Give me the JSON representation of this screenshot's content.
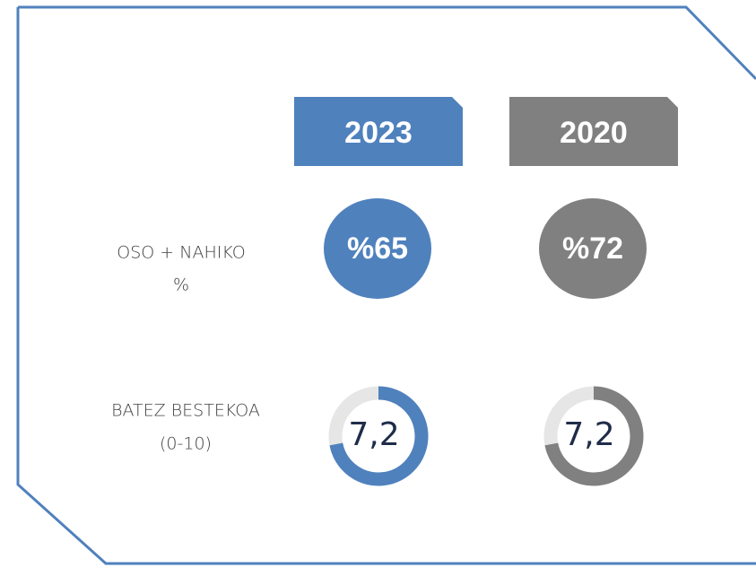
{
  "rows": [
    {
      "label_lines": [
        "OSO + NAHIKO",
        "%"
      ]
    },
    {
      "label_lines": [
        "BATEZ BESTEKOA",
        "(0-10)"
      ]
    }
  ],
  "score_range": [
    0,
    10
  ],
  "columns": [
    {
      "year": "2023",
      "color": "#4f81bd",
      "percent": "%65",
      "score": 7.2,
      "score_label": "7,2"
    },
    {
      "year": "2020",
      "color": "#808080",
      "percent": "%72",
      "score": 7.2,
      "score_label": "7,2"
    }
  ]
}
